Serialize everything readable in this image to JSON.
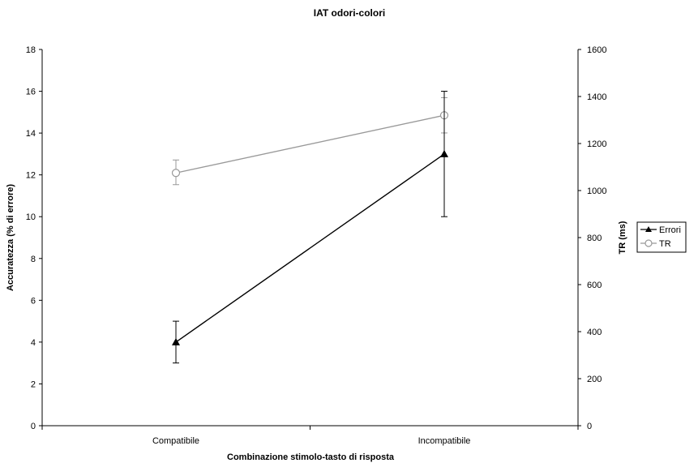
{
  "chart_data": {
    "type": "line",
    "title": "IAT odori-colori",
    "xlabel": "Combinazione stimolo-tasto di risposta",
    "ylabel_left": "Accuratezza (% di errore)",
    "ylabel_right": "TR (ms)",
    "categories": [
      "Compatibile",
      "Incompatibile"
    ],
    "y_left_lim": [
      0,
      18
    ],
    "y_left_ticks": [
      0,
      2,
      4,
      6,
      8,
      10,
      12,
      14,
      16,
      18
    ],
    "y_right_lim": [
      0,
      1600
    ],
    "y_right_ticks": [
      0,
      200,
      400,
      600,
      800,
      1000,
      1200,
      1400,
      1600
    ],
    "grid": false,
    "legend_position": "right",
    "series": [
      {
        "name": "Errori",
        "axis": "left",
        "values": [
          4,
          13
        ],
        "error_low": [
          3,
          10
        ],
        "error_high": [
          5,
          16
        ],
        "marker": "filled-triangle",
        "color": "#000000"
      },
      {
        "name": "TR",
        "axis": "right",
        "values": [
          1075,
          1320
        ],
        "error_low": [
          1025,
          1245
        ],
        "error_high": [
          1130,
          1395
        ],
        "marker": "open-circle",
        "color": "#999999"
      }
    ]
  }
}
